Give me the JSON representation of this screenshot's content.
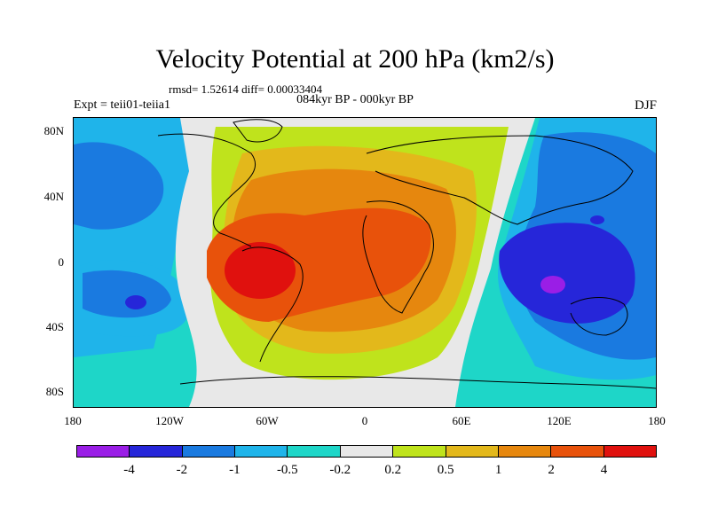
{
  "header": {
    "title": "Velocity Potential at 200 hPa (km2/s)",
    "stats": "rmsd= 1.52614 diff= 0.00033404",
    "subtitle": "084kyr BP - 000kyr BP",
    "experiment": "Expt = teii01-teiia1",
    "season": "DJF"
  },
  "axes": {
    "lat_labels": [
      "80N",
      "40N",
      "0",
      "40S",
      "80S"
    ],
    "lon_labels": [
      "180",
      "120W",
      "60W",
      "0",
      "60E",
      "120E",
      "180"
    ]
  },
  "colorbar": {
    "colors": [
      "#9a1ee6",
      "#2626d9",
      "#1a7ae0",
      "#1fb4ea",
      "#1ed6c8",
      "#e8e8e8",
      "#bfe31c",
      "#e3b81b",
      "#e6870e",
      "#e8520b",
      "#e0110e"
    ],
    "labels": [
      "-4",
      "-2",
      "-1",
      "-0.5",
      "-0.2",
      "0.2",
      "0.5",
      "1",
      "2",
      "4"
    ]
  }
}
